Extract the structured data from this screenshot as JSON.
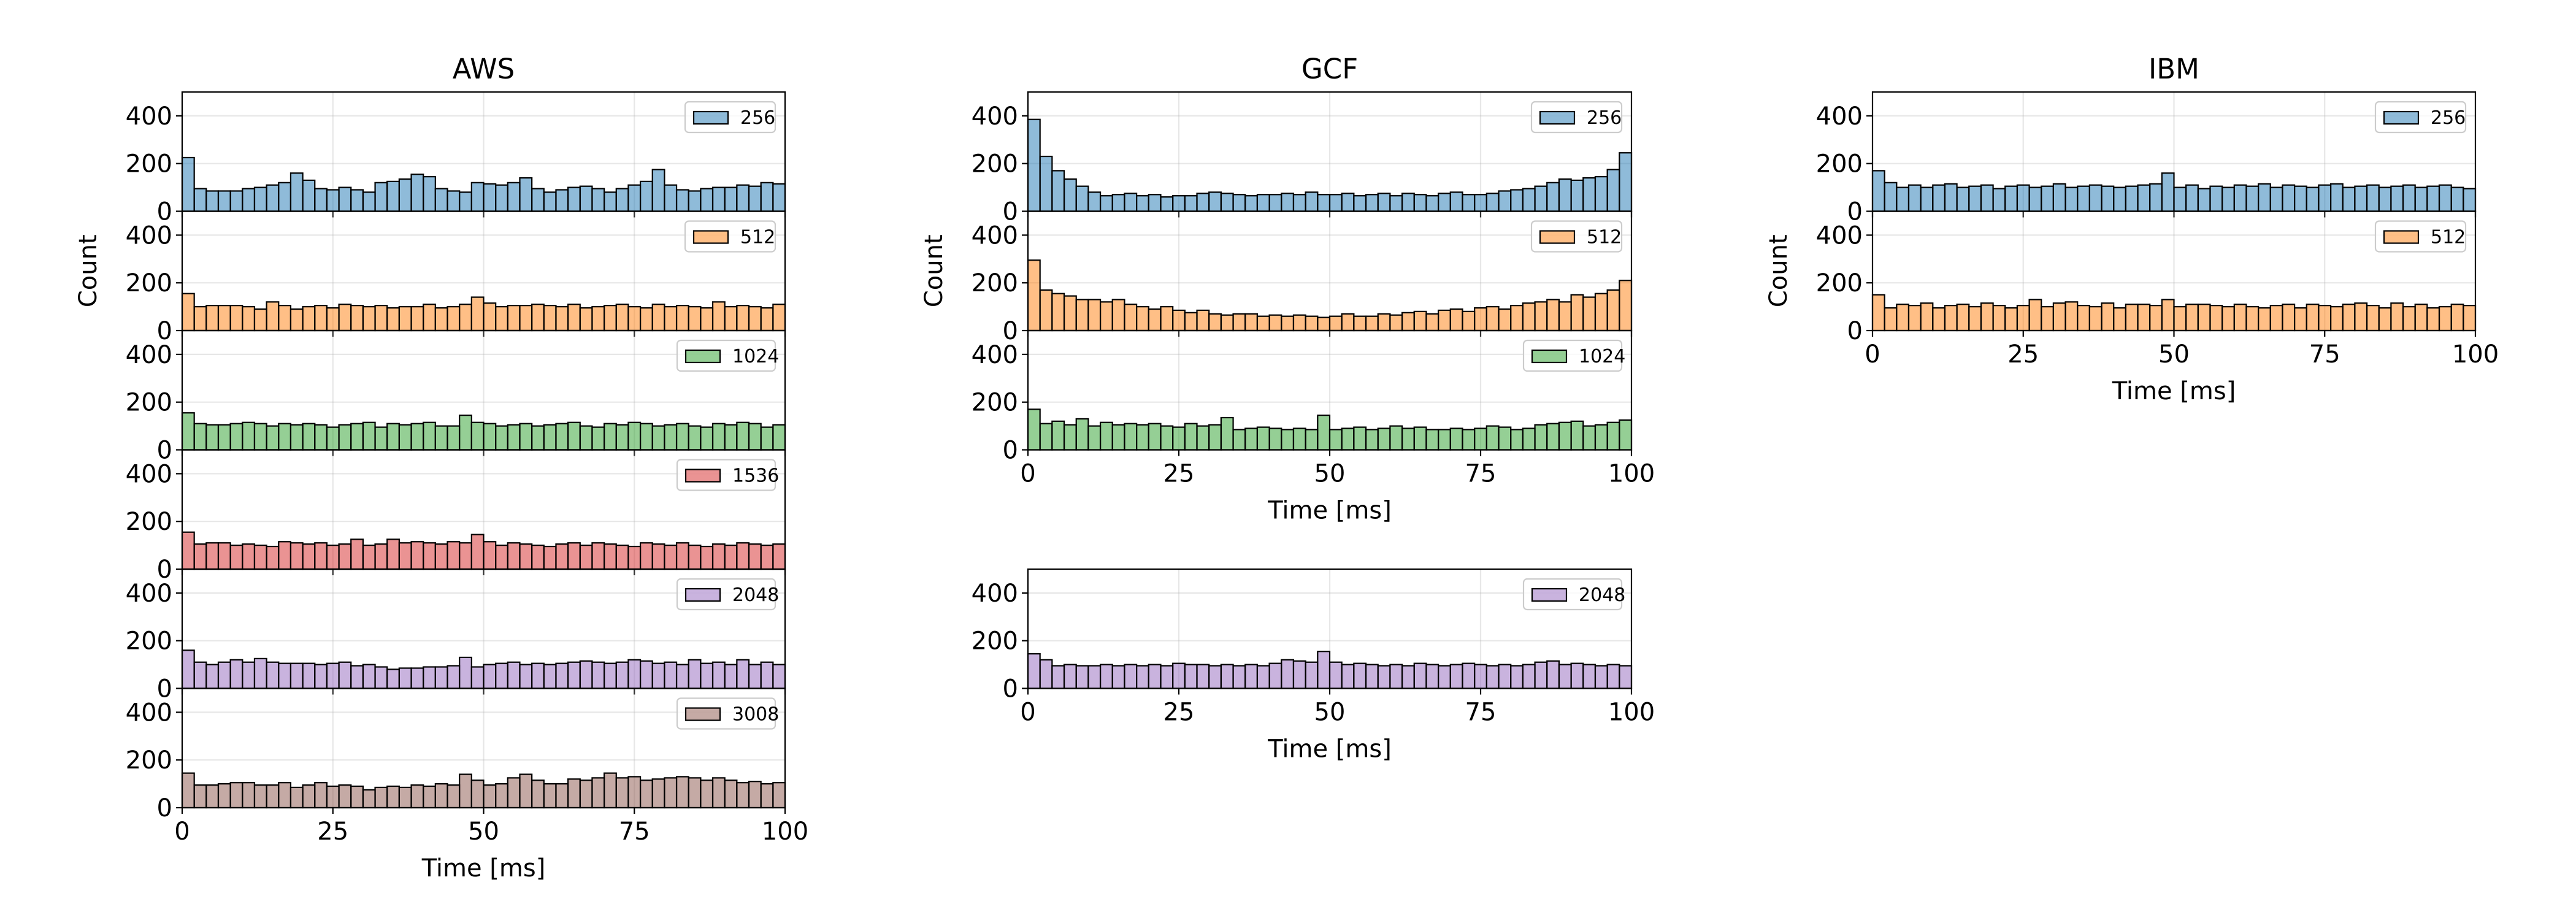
{
  "chart_data": [
    {
      "type": "bar",
      "title": "AWS",
      "ylabel": "Count",
      "xlabel": "Time [ms]",
      "xlim": [
        0,
        100
      ],
      "ylim": [
        0,
        500
      ],
      "yticks": [
        0,
        200,
        400
      ],
      "xticks": [
        0,
        25,
        50,
        75,
        100
      ],
      "bin_width_ms": 2,
      "grid": true,
      "legend_position": "top-right",
      "colors": {
        "256": "#1f77b4",
        "512": "#ff7f0e",
        "1024": "#2ca02c",
        "1536": "#d62728",
        "2048": "#9467bd",
        "3008": "#8c564b"
      },
      "series": [
        {
          "name": "256",
          "values": [
            225,
            95,
            85,
            85,
            85,
            95,
            100,
            110,
            120,
            160,
            130,
            95,
            90,
            100,
            90,
            80,
            120,
            125,
            135,
            155,
            145,
            95,
            85,
            80,
            120,
            115,
            110,
            120,
            140,
            95,
            80,
            90,
            100,
            105,
            95,
            80,
            95,
            110,
            125,
            175,
            110,
            90,
            85,
            95,
            100,
            100,
            110,
            105,
            120,
            115
          ]
        },
        {
          "name": "512",
          "values": [
            155,
            100,
            105,
            105,
            105,
            100,
            90,
            120,
            105,
            90,
            100,
            105,
            95,
            110,
            105,
            100,
            105,
            95,
            100,
            100,
            110,
            95,
            100,
            110,
            140,
            115,
            100,
            105,
            105,
            110,
            105,
            100,
            110,
            95,
            100,
            105,
            110,
            100,
            95,
            110,
            100,
            105,
            100,
            95,
            120,
            100,
            105,
            100,
            95,
            110
          ]
        },
        {
          "name": "1024",
          "values": [
            155,
            110,
            105,
            105,
            110,
            115,
            110,
            100,
            110,
            105,
            110,
            105,
            95,
            105,
            110,
            115,
            95,
            110,
            105,
            110,
            115,
            100,
            100,
            145,
            115,
            110,
            100,
            105,
            110,
            100,
            105,
            110,
            115,
            100,
            95,
            110,
            105,
            115,
            110,
            100,
            105,
            110,
            100,
            95,
            110,
            105,
            115,
            110,
            95,
            105
          ]
        },
        {
          "name": "1536",
          "values": [
            155,
            105,
            110,
            110,
            100,
            105,
            100,
            95,
            115,
            110,
            105,
            110,
            100,
            105,
            125,
            100,
            105,
            125,
            110,
            115,
            110,
            105,
            115,
            110,
            145,
            115,
            100,
            110,
            105,
            100,
            95,
            105,
            110,
            100,
            110,
            105,
            100,
            95,
            110,
            105,
            100,
            110,
            100,
            95,
            105,
            100,
            110,
            105,
            100,
            105
          ]
        },
        {
          "name": "2048",
          "values": [
            160,
            110,
            100,
            110,
            120,
            110,
            125,
            110,
            105,
            105,
            105,
            100,
            105,
            110,
            95,
            100,
            90,
            80,
            85,
            85,
            90,
            90,
            95,
            130,
            90,
            100,
            105,
            110,
            100,
            105,
            100,
            105,
            110,
            115,
            110,
            105,
            110,
            120,
            115,
            105,
            110,
            100,
            120,
            105,
            110,
            100,
            120,
            100,
            110,
            100
          ]
        },
        {
          "name": "3008",
          "values": [
            145,
            95,
            95,
            100,
            105,
            105,
            95,
            95,
            105,
            85,
            95,
            105,
            90,
            95,
            90,
            75,
            85,
            90,
            85,
            95,
            90,
            100,
            95,
            140,
            115,
            95,
            100,
            125,
            140,
            115,
            100,
            100,
            120,
            115,
            125,
            145,
            125,
            130,
            115,
            120,
            125,
            130,
            125,
            115,
            125,
            115,
            105,
            110,
            100,
            105
          ]
        }
      ]
    },
    {
      "type": "bar",
      "title": "GCF",
      "ylabel": "Count",
      "xlabel": "Time [ms]",
      "xlim": [
        0,
        100
      ],
      "ylim": [
        0,
        500
      ],
      "yticks": [
        0,
        200,
        400
      ],
      "xticks": [
        0,
        25,
        50,
        75,
        100
      ],
      "bin_width_ms": 2,
      "grid": true,
      "legend_position": "top-right",
      "colors": {
        "256": "#1f77b4",
        "512": "#ff7f0e",
        "1024": "#2ca02c",
        "2048": "#9467bd"
      },
      "series": [
        {
          "name": "256",
          "values": [
            385,
            230,
            170,
            135,
            105,
            80,
            65,
            70,
            75,
            65,
            70,
            60,
            65,
            65,
            75,
            80,
            75,
            70,
            65,
            70,
            70,
            75,
            70,
            80,
            70,
            70,
            75,
            65,
            70,
            75,
            65,
            75,
            70,
            65,
            75,
            80,
            70,
            70,
            75,
            85,
            90,
            95,
            105,
            120,
            135,
            130,
            140,
            145,
            175,
            245
          ]
        },
        {
          "name": "512",
          "values": [
            295,
            170,
            155,
            145,
            130,
            130,
            120,
            130,
            110,
            100,
            90,
            100,
            85,
            75,
            85,
            70,
            65,
            70,
            70,
            60,
            65,
            60,
            65,
            60,
            55,
            60,
            70,
            60,
            60,
            70,
            65,
            75,
            80,
            70,
            85,
            90,
            80,
            95,
            100,
            90,
            105,
            115,
            120,
            130,
            120,
            150,
            140,
            155,
            170,
            210
          ]
        },
        {
          "name": "1024",
          "values": [
            170,
            110,
            120,
            105,
            130,
            100,
            115,
            105,
            110,
            105,
            110,
            100,
            95,
            110,
            100,
            105,
            135,
            85,
            90,
            95,
            90,
            85,
            90,
            85,
            145,
            85,
            90,
            95,
            85,
            90,
            100,
            90,
            95,
            85,
            85,
            90,
            85,
            90,
            100,
            95,
            85,
            90,
            105,
            110,
            115,
            120,
            100,
            105,
            115,
            125
          ]
        },
        {
          "name": "2048",
          "values": [
            145,
            120,
            95,
            100,
            95,
            95,
            100,
            95,
            100,
            95,
            100,
            95,
            105,
            100,
            100,
            95,
            100,
            95,
            100,
            95,
            105,
            120,
            115,
            110,
            155,
            110,
            100,
            105,
            100,
            95,
            100,
            95,
            105,
            100,
            95,
            100,
            105,
            100,
            95,
            100,
            95,
            100,
            110,
            115,
            100,
            105,
            100,
            95,
            100,
            95
          ]
        }
      ]
    },
    {
      "type": "bar",
      "title": "IBM",
      "ylabel": "Count",
      "xlabel": "Time [ms]",
      "xlim": [
        0,
        100
      ],
      "ylim": [
        0,
        500
      ],
      "yticks": [
        0,
        200,
        400
      ],
      "xticks": [
        0,
        25,
        50,
        75,
        100
      ],
      "bin_width_ms": 2,
      "grid": true,
      "legend_position": "top-right",
      "colors": {
        "256": "#1f77b4",
        "512": "#ff7f0e"
      },
      "series": [
        {
          "name": "256",
          "values": [
            170,
            120,
            100,
            110,
            100,
            110,
            115,
            100,
            105,
            110,
            95,
            105,
            110,
            100,
            105,
            115,
            100,
            105,
            110,
            105,
            100,
            105,
            110,
            115,
            160,
            100,
            110,
            95,
            105,
            100,
            110,
            105,
            115,
            100,
            110,
            105,
            100,
            110,
            115,
            100,
            105,
            110,
            100,
            105,
            110,
            100,
            105,
            110,
            100,
            95
          ]
        },
        {
          "name": "512",
          "values": [
            150,
            95,
            110,
            105,
            115,
            95,
            105,
            110,
            100,
            115,
            105,
            95,
            105,
            130,
            100,
            115,
            120,
            105,
            100,
            115,
            95,
            110,
            110,
            105,
            130,
            100,
            110,
            110,
            105,
            100,
            110,
            100,
            95,
            105,
            110,
            95,
            110,
            105,
            100,
            110,
            115,
            105,
            95,
            115,
            100,
            110,
            95,
            100,
            110,
            105
          ]
        }
      ]
    }
  ]
}
